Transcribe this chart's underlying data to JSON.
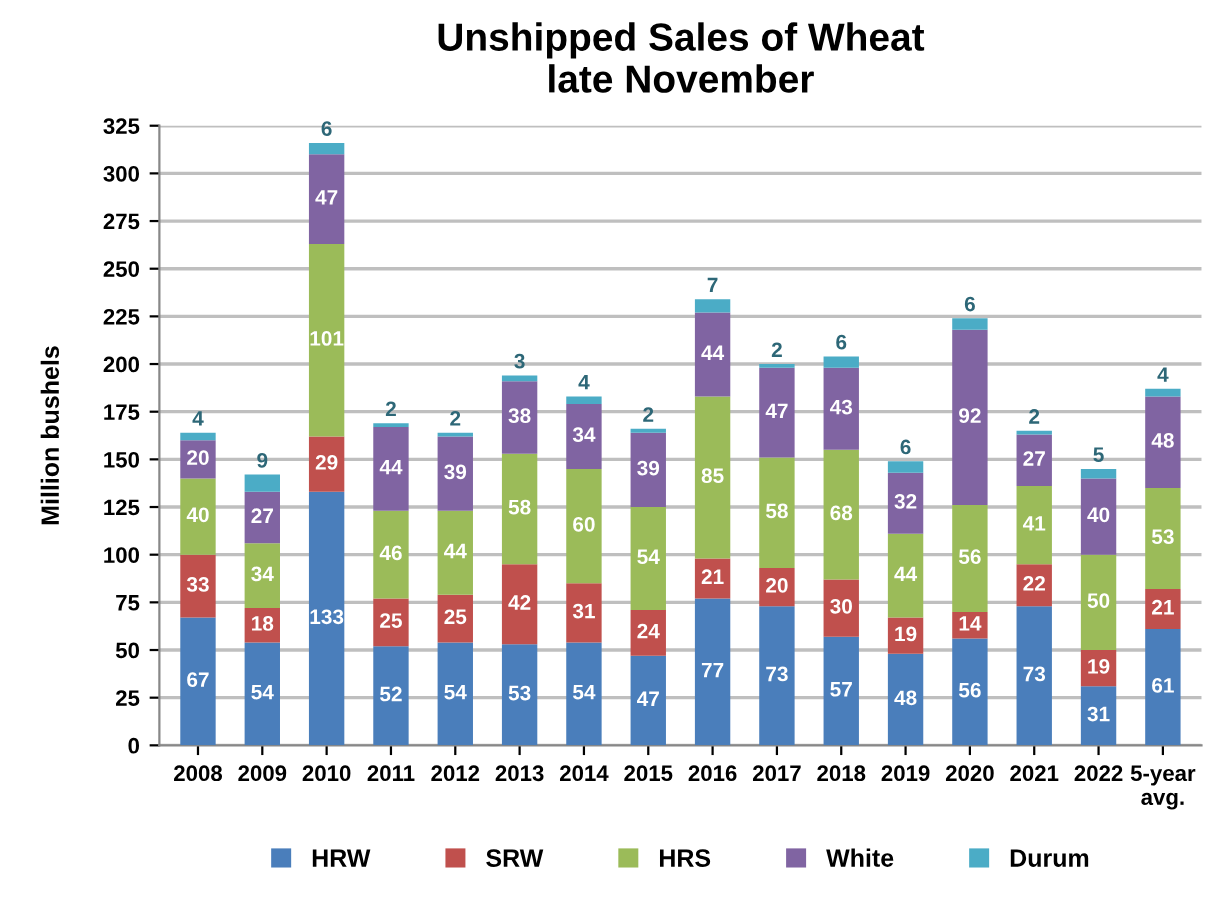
{
  "chart_data": {
    "type": "bar",
    "title": "Unshipped Sales of Wheat\nlate November",
    "ylabel": "Million bushels",
    "categories": [
      "2008",
      "2009",
      "2010",
      "2011",
      "2012",
      "2013",
      "2014",
      "2015",
      "2016",
      "2017",
      "2018",
      "2019",
      "2020",
      "2021",
      "2022",
      "5-year\navg."
    ],
    "stacked": true,
    "data_labels": true,
    "grid": "y",
    "legend": "bottom",
    "ylim": [
      0,
      325
    ],
    "yticks": [
      0,
      25,
      50,
      75,
      100,
      125,
      150,
      175,
      200,
      225,
      250,
      275,
      300,
      325
    ],
    "series": [
      {
        "name": "HRW",
        "color": "#4a7ebb",
        "values": [
          67,
          54,
          133,
          52,
          54,
          53,
          54,
          47,
          77,
          73,
          57,
          48,
          56,
          73,
          31,
          61
        ]
      },
      {
        "name": "SRW",
        "color": "#c0504d",
        "values": [
          33,
          18,
          29,
          25,
          25,
          42,
          31,
          24,
          21,
          20,
          30,
          19,
          14,
          22,
          19,
          21
        ]
      },
      {
        "name": "HRS",
        "color": "#9bbb59",
        "values": [
          40,
          34,
          101,
          46,
          44,
          58,
          60,
          54,
          85,
          58,
          68,
          44,
          56,
          41,
          50,
          53
        ]
      },
      {
        "name": "White",
        "color": "#8064a2",
        "values": [
          20,
          27,
          47,
          44,
          39,
          38,
          34,
          39,
          44,
          47,
          43,
          32,
          92,
          27,
          40,
          48
        ]
      },
      {
        "name": "Durum",
        "color": "#4bacc6",
        "values": [
          4,
          9,
          6,
          2,
          2,
          3,
          4,
          2,
          7,
          2,
          6,
          6,
          6,
          2,
          5,
          4
        ]
      }
    ]
  }
}
